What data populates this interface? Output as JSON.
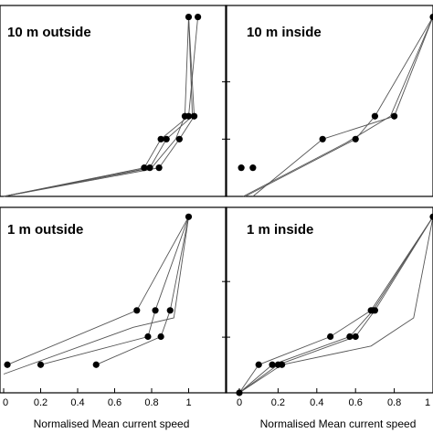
{
  "chart_data": [
    {
      "type": "line",
      "title": "10 m outside",
      "xlabel": "",
      "ylabel": "",
      "xlim": [
        0,
        1.1
      ],
      "ylim": [
        0,
        1
      ],
      "grid": false,
      "series": [
        {
          "x": [
            0,
            0.76,
            0.85,
            1.0,
            1.05
          ],
          "y": [
            0,
            0.15,
            0.3,
            0.42,
            0.94
          ]
        },
        {
          "x": [
            0,
            0.79,
            0.88,
            1.02,
            1.0
          ],
          "y": [
            0,
            0.15,
            0.3,
            0.42,
            0.94
          ]
        },
        {
          "x": [
            0,
            0.84,
            0.95,
            1.03,
            1.0
          ],
          "y": [
            0,
            0.15,
            0.3,
            0.42,
            0.94
          ]
        },
        {
          "x": [
            0,
            0.8,
            0.93,
            0.98,
            1.0
          ],
          "y": [
            0,
            0.15,
            0.3,
            0.42,
            0.94
          ]
        }
      ],
      "markers": [
        {
          "x": 1.0,
          "y": 0.94
        },
        {
          "x": 1.05,
          "y": 0.94
        },
        {
          "x": 0.98,
          "y": 0.42
        },
        {
          "x": 1.0,
          "y": 0.42
        },
        {
          "x": 1.03,
          "y": 0.42
        },
        {
          "x": 0.85,
          "y": 0.3
        },
        {
          "x": 0.88,
          "y": 0.3
        },
        {
          "x": 0.95,
          "y": 0.3
        },
        {
          "x": 0.76,
          "y": 0.15
        },
        {
          "x": 0.79,
          "y": 0.15
        },
        {
          "x": 0.84,
          "y": 0.15
        }
      ]
    },
    {
      "type": "line",
      "title": "10 m inside",
      "xlabel": "",
      "ylabel": "",
      "xlim": [
        0,
        1
      ],
      "ylim": [
        0,
        1
      ],
      "grid": false,
      "series": [
        {
          "x": [
            0.03,
            0.6,
            0.7,
            1.0
          ],
          "y": [
            0,
            0.3,
            0.42,
            0.94
          ]
        },
        {
          "x": [
            0.07,
            0.43,
            0.8,
            1.0
          ],
          "y": [
            0,
            0.3,
            0.42,
            0.94
          ]
        },
        {
          "x": [
            0.02,
            0.55,
            0.78,
            1.0
          ],
          "y": [
            0,
            0.28,
            0.42,
            0.94
          ]
        }
      ],
      "markers": [
        {
          "x": 1.0,
          "y": 0.94
        },
        {
          "x": 0.7,
          "y": 0.42
        },
        {
          "x": 0.8,
          "y": 0.42
        },
        {
          "x": 0.43,
          "y": 0.3
        },
        {
          "x": 0.6,
          "y": 0.3
        },
        {
          "x": 0.01,
          "y": 0.15
        },
        {
          "x": 0.07,
          "y": 0.15
        }
      ]
    },
    {
      "type": "line",
      "title": "1 m outside",
      "xlabel": "Normalised Mean current speed",
      "ylabel": "",
      "xlim": [
        0,
        1.1
      ],
      "ylim": [
        0,
        1
      ],
      "xticks": [
        "0",
        "0.2",
        "0.4",
        "0.6",
        "0.8",
        "1"
      ],
      "grid": false,
      "series": [
        {
          "x": [
            0.02,
            0.72,
            1.0
          ],
          "y": [
            0.15,
            0.44,
            0.94
          ]
        },
        {
          "x": [
            0.2,
            0.78,
            0.82,
            1.0
          ],
          "y": [
            0.15,
            0.3,
            0.44,
            0.94
          ]
        },
        {
          "x": [
            0.5,
            0.85,
            0.9,
            1.0
          ],
          "y": [
            0.15,
            0.3,
            0.44,
            0.94
          ]
        },
        {
          "x": [
            0.0,
            0.7,
            0.92,
            1.0
          ],
          "y": [
            0.1,
            0.35,
            0.4,
            0.94
          ]
        }
      ],
      "markers": [
        {
          "x": 1.0,
          "y": 0.94
        },
        {
          "x": 0.72,
          "y": 0.44
        },
        {
          "x": 0.82,
          "y": 0.44
        },
        {
          "x": 0.9,
          "y": 0.44
        },
        {
          "x": 0.78,
          "y": 0.3
        },
        {
          "x": 0.85,
          "y": 0.3
        },
        {
          "x": 0.02,
          "y": 0.15
        },
        {
          "x": 0.2,
          "y": 0.15
        },
        {
          "x": 0.5,
          "y": 0.15
        }
      ]
    },
    {
      "type": "line",
      "title": "1 m inside",
      "xlabel": "Normalised Mean current speed",
      "ylabel": "",
      "xlim": [
        0,
        1
      ],
      "ylim": [
        0,
        1
      ],
      "xticks": [
        "0",
        "0.2",
        "0.4",
        "0.6",
        "0.8",
        "1"
      ],
      "grid": false,
      "series": [
        {
          "x": [
            0.0,
            0.1,
            0.47,
            0.68,
            1.0
          ],
          "y": [
            0.0,
            0.15,
            0.3,
            0.44,
            0.94
          ]
        },
        {
          "x": [
            0.0,
            0.17,
            0.57,
            0.69,
            1.0
          ],
          "y": [
            0.0,
            0.15,
            0.3,
            0.44,
            0.94
          ]
        },
        {
          "x": [
            0.0,
            0.2,
            0.6,
            0.7,
            1.0
          ],
          "y": [
            0.0,
            0.15,
            0.3,
            0.44,
            0.94
          ]
        },
        {
          "x": [
            0.0,
            0.22,
            0.68,
            0.9,
            1.0
          ],
          "y": [
            0.0,
            0.15,
            0.25,
            0.4,
            0.94
          ]
        }
      ],
      "markers": [
        {
          "x": 1.0,
          "y": 0.94
        },
        {
          "x": 0.68,
          "y": 0.44
        },
        {
          "x": 0.69,
          "y": 0.44
        },
        {
          "x": 0.7,
          "y": 0.44
        },
        {
          "x": 0.47,
          "y": 0.3
        },
        {
          "x": 0.57,
          "y": 0.3
        },
        {
          "x": 0.6,
          "y": 0.3
        },
        {
          "x": 0.1,
          "y": 0.15
        },
        {
          "x": 0.17,
          "y": 0.15
        },
        {
          "x": 0.2,
          "y": 0.15
        },
        {
          "x": 0.22,
          "y": 0.15
        },
        {
          "x": 0.0,
          "y": 0.0
        }
      ]
    }
  ]
}
